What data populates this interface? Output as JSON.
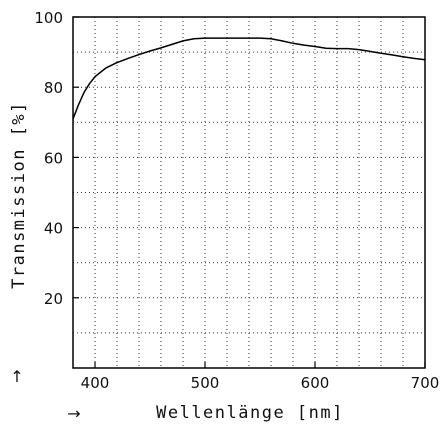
{
  "chart_data": {
    "type": "line",
    "title": "",
    "xlabel": "Wellenlänge [nm]",
    "ylabel": "Transmission [%]",
    "xlim": [
      380,
      700
    ],
    "ylim": [
      0,
      100
    ],
    "x_ticks": [
      400,
      500,
      600,
      700
    ],
    "y_ticks": [
      20,
      40,
      60,
      80,
      100
    ],
    "x_minor_grid_step": 20,
    "y_grid_step": 10,
    "grid": true,
    "series": [
      {
        "x": [
          380,
          385,
          390,
          395,
          400,
          410,
          420,
          430,
          440,
          450,
          460,
          470,
          480,
          490,
          500,
          510,
          520,
          530,
          540,
          550,
          560,
          570,
          580,
          590,
          600,
          610,
          620,
          630,
          640,
          650,
          660,
          670,
          680,
          690,
          700
        ],
        "y": [
          71,
          75,
          78.5,
          81,
          83,
          85.5,
          87,
          88.2,
          89.3,
          90.3,
          91.2,
          92.2,
          93.2,
          93.8,
          94,
          94,
          94,
          94,
          94,
          94,
          93.8,
          93.2,
          92.5,
          92,
          91.6,
          91.1,
          91,
          91,
          90.7,
          90.2,
          89.7,
          89.2,
          88.7,
          88.2,
          87.8
        ]
      }
    ]
  },
  "markers": {
    "y_arrow": "↑",
    "x_arrow": "→"
  },
  "colors": {
    "line": "#000000",
    "grid": "#333333",
    "frame": "#000000"
  }
}
